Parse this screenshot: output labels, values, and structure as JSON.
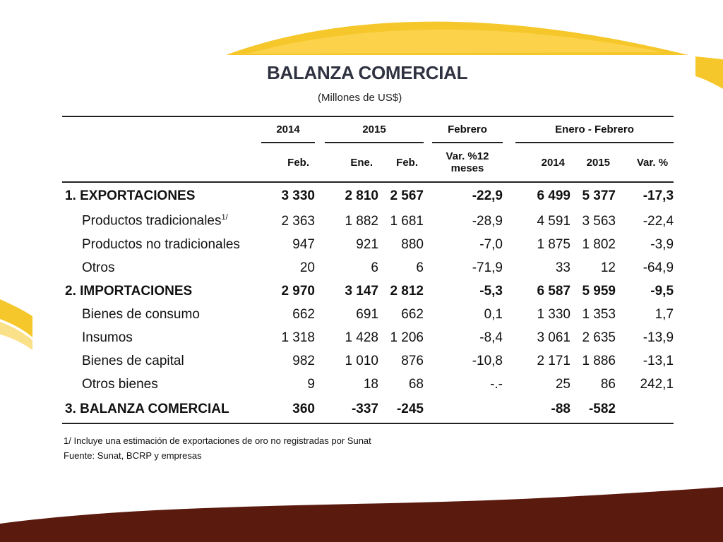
{
  "slide": {
    "title": "BALANZA COMERCIAL",
    "subtitle": "(Millones de US$)",
    "colors": {
      "yellow": "#f6c72a",
      "yellow_light": "#fbe08a",
      "brown": "#5a1a0e"
    }
  },
  "table": {
    "header_row1": {
      "year_2014": "2014",
      "year_2015": "2015",
      "febrero": "Febrero",
      "ene_feb": "Enero - Febrero"
    },
    "header_row2": {
      "feb_2014": "Feb.",
      "ene_2015": "Ene.",
      "feb_2015": "Feb.",
      "var12_line1": "Var. %12",
      "var12_line2": "meses",
      "y2014": "2014",
      "y2015": "2015",
      "var": "Var. %"
    },
    "rows": [
      {
        "label": "1. EXPORTACIONES",
        "sup": "",
        "feb14": "3 330",
        "ene15": "2 810",
        "feb15": "2 567",
        "var12": "-22,9",
        "ef14": "6 499",
        "ef15": "5 377",
        "var": "-17,3"
      },
      {
        "label": "Productos tradicionales",
        "sup": "1/",
        "feb14": "2 363",
        "ene15": "1 882",
        "feb15": "1 681",
        "var12": "-28,9",
        "ef14": "4 591",
        "ef15": "3 563",
        "var": "-22,4"
      },
      {
        "label": "Productos no tradicionales",
        "sup": "",
        "feb14": "947",
        "ene15": "921",
        "feb15": "880",
        "var12": "-7,0",
        "ef14": "1 875",
        "ef15": "1 802",
        "var": "-3,9"
      },
      {
        "label": "Otros",
        "sup": "",
        "feb14": "20",
        "ene15": "6",
        "feb15": "6",
        "var12": "-71,9",
        "ef14": "33",
        "ef15": "12",
        "var": "-64,9"
      },
      {
        "label": "2. IMPORTACIONES",
        "sup": "",
        "feb14": "2 970",
        "ene15": "3 147",
        "feb15": "2 812",
        "var12": "-5,3",
        "ef14": "6 587",
        "ef15": "5 959",
        "var": "-9,5"
      },
      {
        "label": "Bienes de consumo",
        "sup": "",
        "feb14": "662",
        "ene15": "691",
        "feb15": "662",
        "var12": "0,1",
        "ef14": "1 330",
        "ef15": "1 353",
        "var": "1,7"
      },
      {
        "label": "Insumos",
        "sup": "",
        "feb14": "1 318",
        "ene15": "1 428",
        "feb15": "1 206",
        "var12": "-8,4",
        "ef14": "3 061",
        "ef15": "2 635",
        "var": "-13,9"
      },
      {
        "label": "Bienes de capital",
        "sup": "",
        "feb14": "982",
        "ene15": "1 010",
        "feb15": "876",
        "var12": "-10,8",
        "ef14": "2 171",
        "ef15": "1 886",
        "var": "-13,1"
      },
      {
        "label": "Otros bienes",
        "sup": "",
        "feb14": "9",
        "ene15": "18",
        "feb15": "68",
        "var12": "-.-",
        "ef14": "25",
        "ef15": "86",
        "var": "242,1"
      },
      {
        "label": "3. BALANZA COMERCIAL",
        "sup": "",
        "feb14": "360",
        "ene15": "-337",
        "feb15": "-245",
        "var12": "",
        "ef14": "-88",
        "ef15": "-582",
        "var": ""
      }
    ]
  },
  "notes": {
    "note1": "1/ Incluye una estimación de exportaciones de oro no registradas por Sunat",
    "source": "Fuente: Sunat, BCRP y empresas"
  }
}
